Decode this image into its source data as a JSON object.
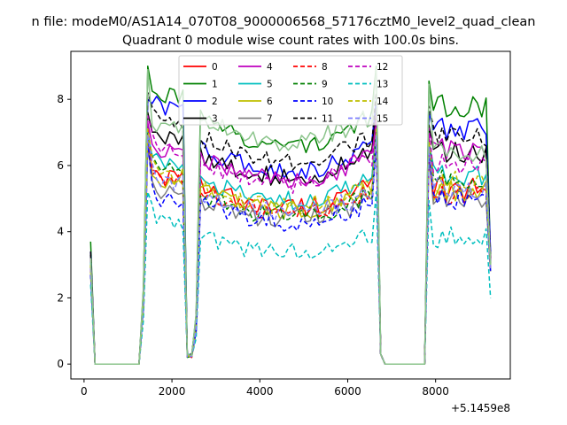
{
  "figure": {
    "suptitle": "n file: modeM0/AS1A14_070T08_9000006568_57176cztM0_level2_quad_clean",
    "offset_label": "+5.1459e8"
  },
  "chart_data": {
    "type": "line",
    "title": "Quadrant 0 module wise count rates with 100.0s bins.",
    "xlabel": "",
    "ylabel": "",
    "xlim": [
      -300,
      9700
    ],
    "ylim": [
      -0.45,
      9.45
    ],
    "x_ticks": [
      0,
      2000,
      4000,
      6000,
      8000
    ],
    "x_tick_labels": [
      "0",
      "2000",
      "4000",
      "6000",
      "8000"
    ],
    "y_ticks": [
      0,
      2,
      4,
      6,
      8
    ],
    "y_tick_labels": [
      "0",
      "2",
      "4",
      "6",
      "8"
    ],
    "x_offset": 514590000,
    "grid": false,
    "legend_position": "top-center",
    "legend_columns": 4,
    "x_breakpoints": [
      150,
      250,
      1250,
      1450,
      2350,
      2450,
      2550,
      6650,
      6750,
      6850,
      7750,
      7850,
      9250
    ],
    "series": [
      {
        "name": "0",
        "color": "#ff0000",
        "dashed": false,
        "level_a": 5.6,
        "level_b": 5.4,
        "level_c": 5.3,
        "peak": 7.2,
        "start": 3.0,
        "end": 3.0
      },
      {
        "name": "1",
        "color": "#008000",
        "dashed": false,
        "level_a": 8.1,
        "level_b": 7.5,
        "level_c": 7.8,
        "peak": 9.0,
        "start": 3.7,
        "end": 3.2
      },
      {
        "name": "2",
        "color": "#0000ff",
        "dashed": false,
        "level_a": 7.7,
        "level_b": 6.6,
        "level_c": 7.1,
        "peak": 8.0,
        "start": 3.4,
        "end": 3.4
      },
      {
        "name": "3",
        "color": "#000000",
        "dashed": false,
        "level_a": 6.8,
        "level_b": 6.4,
        "level_c": 6.4,
        "peak": 7.6,
        "start": 3.3,
        "end": 3.0
      },
      {
        "name": "4",
        "color": "#bf00bf",
        "dashed": false,
        "level_a": 6.4,
        "level_b": 6.3,
        "level_c": 6.5,
        "peak": 7.3,
        "start": 3.2,
        "end": 3.1
      },
      {
        "name": "5",
        "color": "#00bfbf",
        "dashed": false,
        "level_a": 6.0,
        "level_b": 5.6,
        "level_c": 5.7,
        "peak": 7.0,
        "start": 3.1,
        "end": 3.0
      },
      {
        "name": "6",
        "color": "#bfbf00",
        "dashed": false,
        "level_a": 5.4,
        "level_b": 5.3,
        "level_c": 5.2,
        "peak": 6.8,
        "start": 2.8,
        "end": 2.9
      },
      {
        "name": "7",
        "color": "#808080",
        "dashed": false,
        "level_a": 5.2,
        "level_b": 5.0,
        "level_c": 5.0,
        "peak": 6.6,
        "start": 2.7,
        "end": 2.8
      },
      {
        "name": "8",
        "color": "#ff0000",
        "dashed": true,
        "level_a": 5.5,
        "level_b": 5.2,
        "level_c": 5.1,
        "peak": 6.9,
        "start": 2.9,
        "end": 2.9
      },
      {
        "name": "9",
        "color": "#008000",
        "dashed": true,
        "level_a": 5.9,
        "level_b": 5.1,
        "level_c": 5.6,
        "peak": 7.0,
        "start": 3.0,
        "end": 3.0
      },
      {
        "name": "10",
        "color": "#0000ff",
        "dashed": true,
        "level_a": 5.0,
        "level_b": 4.9,
        "level_c": 5.0,
        "peak": 6.7,
        "start": 2.7,
        "end": 2.8
      },
      {
        "name": "11",
        "color": "#000000",
        "dashed": true,
        "level_a": 7.3,
        "level_b": 6.9,
        "level_c": 6.9,
        "peak": 8.2,
        "start": 3.4,
        "end": 3.2
      },
      {
        "name": "12",
        "color": "#bf00bf",
        "dashed": true,
        "level_a": 6.5,
        "level_b": 6.2,
        "level_c": 6.1,
        "peak": 7.5,
        "start": 3.2,
        "end": 3.1
      },
      {
        "name": "13",
        "color": "#00bfbf",
        "dashed": true,
        "level_a": 4.3,
        "level_b": 3.9,
        "level_c": 3.8,
        "peak": 5.2,
        "start": 2.4,
        "end": 2.0
      },
      {
        "name": "14",
        "color": "#bfbf00",
        "dashed": true,
        "level_a": 5.7,
        "level_b": 5.4,
        "level_c": 5.5,
        "peak": 7.1,
        "start": 3.0,
        "end": 2.9
      },
      {
        "name": "15",
        "color": "#7f7fff",
        "dashed": true,
        "level_a": 5.5,
        "level_b": 5.2,
        "level_c": 5.3,
        "peak": 6.9,
        "start": 2.9,
        "end": 2.9
      },
      {
        "name": "",
        "color": "#8bc48b",
        "dashed": false,
        "level_a": 7.1,
        "level_b": 7.6,
        "level_c": 6.4,
        "peak": 8.9,
        "start": 3.2,
        "end": 3.0
      }
    ]
  }
}
